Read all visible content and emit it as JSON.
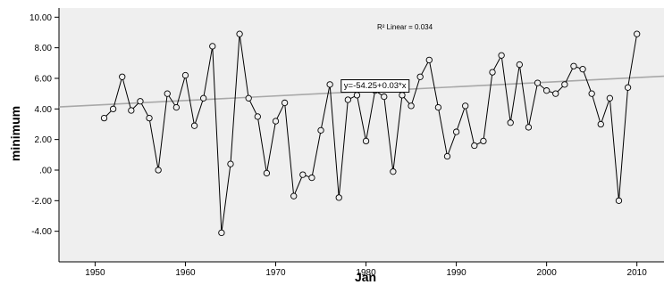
{
  "chart_data": {
    "type": "line",
    "xlabel": "Jan",
    "ylabel": "minimum",
    "xlim": [
      1946,
      2013
    ],
    "ylim": [
      -6.0,
      10.6
    ],
    "x_ticks": [
      1950,
      1960,
      1970,
      1980,
      1990,
      2000,
      2010
    ],
    "x_tick_labels": [
      "1950",
      "1960",
      "1970",
      "1980",
      "1990",
      "2000",
      "2010"
    ],
    "y_ticks": [
      -4,
      -2,
      0,
      2,
      4,
      6,
      8,
      10
    ],
    "y_tick_labels": [
      "-4.00",
      "-2.00",
      ".00",
      "2.00",
      "4.00",
      "6.00",
      "8.00",
      "10.00"
    ],
    "grid": false,
    "series": [
      {
        "x": [
          1951,
          1952,
          1953,
          1954,
          1955,
          1956,
          1957,
          1958,
          1959,
          1960,
          1961,
          1962,
          1963,
          1964,
          1965,
          1966,
          1967,
          1968,
          1969,
          1970,
          1971,
          1972,
          1973,
          1974,
          1975,
          1976,
          1977,
          1978,
          1979,
          1980,
          1981,
          1982,
          1983,
          1984,
          1985,
          1986,
          1987,
          1988,
          1989,
          1990,
          1991,
          1992,
          1993,
          1994,
          1995,
          1996,
          1997,
          1998,
          1999,
          2000,
          2001,
          2002,
          2003,
          2004,
          2005,
          2006,
          2007,
          2008,
          2009,
          2010
        ],
        "values": [
          3.4,
          4.0,
          6.1,
          3.9,
          4.5,
          3.4,
          0.0,
          5.0,
          4.1,
          6.2,
          2.9,
          4.7,
          8.1,
          -4.1,
          0.4,
          8.9,
          4.7,
          3.5,
          -0.2,
          3.2,
          4.4,
          -1.7,
          -0.3,
          -0.5,
          2.6,
          5.6,
          -1.8,
          4.6,
          4.9,
          1.9,
          5.2,
          4.8,
          -0.1,
          4.9,
          4.2,
          6.1,
          7.2,
          4.1,
          0.9,
          2.5,
          4.2,
          1.6,
          1.9,
          6.4,
          7.5,
          3.1,
          6.9,
          2.8,
          5.7,
          5.2,
          5.0,
          5.6,
          6.8,
          6.6,
          5.0,
          3.0,
          4.7,
          -2.0,
          5.4,
          8.9
        ]
      }
    ],
    "fit_line": {
      "type": "linear",
      "intercept": -54.25,
      "slope": 0.03,
      "x_range": [
        1946,
        2013
      ],
      "equation_label": "y=-54.25+0.03*x",
      "equation_x": 1981
    },
    "r_squared_label": "R² Linear = 0.034",
    "colors": {
      "plot_background": "#efefef",
      "line": "#000000",
      "marker_fill": "#efefef",
      "fit_line": "#a8a8a8",
      "axis": "#000000"
    }
  }
}
